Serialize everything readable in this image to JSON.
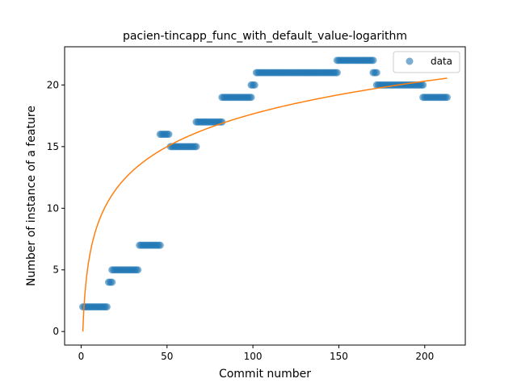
{
  "chart_data": {
    "type": "scatter",
    "title": "pacien-tincapp_func_with_default_value-logarithm",
    "xlabel": "Commit number",
    "ylabel": "Number of instance of a feature",
    "xlim": [
      -9.6,
      223.6
    ],
    "ylim": [
      -1.1,
      23.1
    ],
    "xticks": [
      0,
      50,
      100,
      150,
      200
    ],
    "yticks": [
      0,
      5,
      10,
      15,
      20
    ],
    "legend_position": "top-right",
    "grid": false,
    "series": [
      {
        "name": "data",
        "kind": "points",
        "color": "#1f77b4",
        "runs": [
          {
            "x_start": 1,
            "x_end": 15,
            "y": 2
          },
          {
            "x_start": 16,
            "x_end": 18,
            "y": 4
          },
          {
            "x_start": 18,
            "x_end": 33,
            "y": 5
          },
          {
            "x_start": 34,
            "x_end": 46,
            "y": 7
          },
          {
            "x_start": 46,
            "x_end": 51,
            "y": 16
          },
          {
            "x_start": 52,
            "x_end": 67,
            "y": 15
          },
          {
            "x_start": 67,
            "x_end": 82,
            "y": 17
          },
          {
            "x_start": 82,
            "x_end": 99,
            "y": 19
          },
          {
            "x_start": 99,
            "x_end": 101,
            "y": 20
          },
          {
            "x_start": 102,
            "x_end": 149,
            "y": 21
          },
          {
            "x_start": 149,
            "x_end": 170,
            "y": 22
          },
          {
            "x_start": 170,
            "x_end": 172,
            "y": 21
          },
          {
            "x_start": 172,
            "x_end": 199,
            "y": 20
          },
          {
            "x_start": 199,
            "x_end": 213,
            "y": 19
          }
        ]
      },
      {
        "kind": "curve",
        "color": "#ff7f0e",
        "fit": "logarithmic",
        "x_range": [
          1,
          213
        ],
        "y_at_x_min": 0,
        "y_at_x_max": 20.55
      }
    ]
  }
}
